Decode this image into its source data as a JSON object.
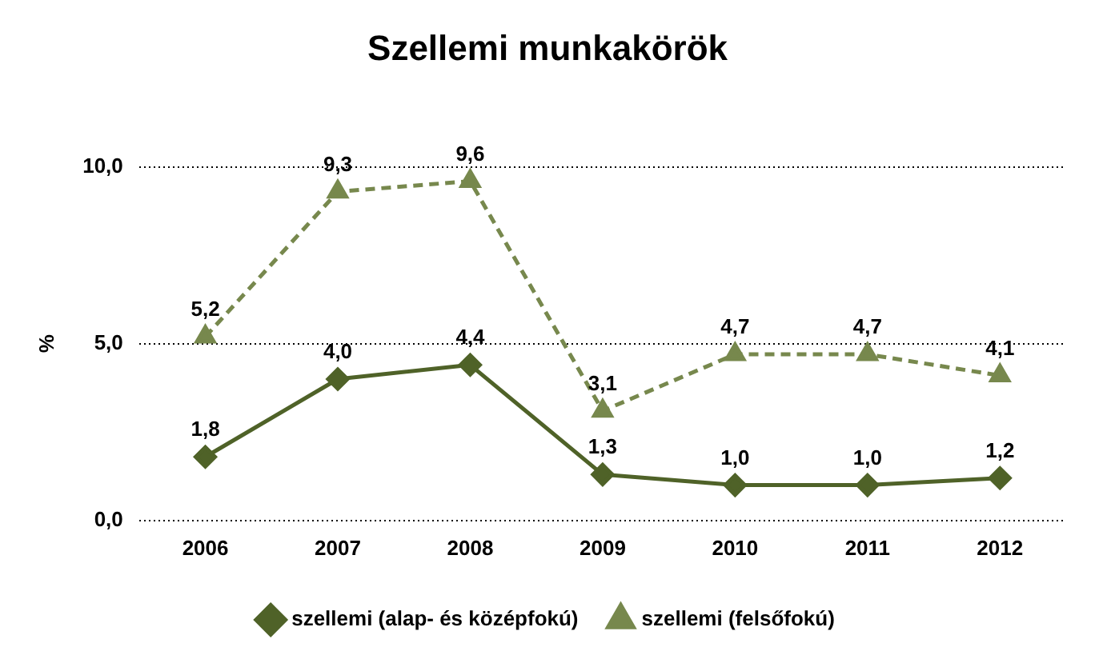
{
  "chart_data": {
    "type": "line",
    "title": "Szellemi munkakörök",
    "ylabel": "%",
    "categories": [
      "2006",
      "2007",
      "2008",
      "2009",
      "2010",
      "2011",
      "2012"
    ],
    "series": [
      {
        "name": "szellemi (alap- és középfokú)",
        "color": "#4f6228",
        "values": [
          1.8,
          4.0,
          4.4,
          1.3,
          1.0,
          1.0,
          1.2
        ],
        "value_labels": [
          "1,8",
          "4,0",
          "4,4",
          "1,3",
          "1,0",
          "1,0",
          "1,2"
        ],
        "marker": "diamond",
        "line_style": "solid"
      },
      {
        "name": "szellemi (felsőfokú)",
        "color": "#77884d",
        "values": [
          5.2,
          9.3,
          9.6,
          3.1,
          4.7,
          4.7,
          4.1
        ],
        "value_labels": [
          "5,2",
          "9,3",
          "9,6",
          "3,1",
          "4,7",
          "4,7",
          "4,1"
        ],
        "marker": "triangle",
        "line_style": "dashed"
      }
    ],
    "ylim": [
      0,
      10
    ],
    "yticks": [
      {
        "value": 0,
        "label": "0,0"
      },
      {
        "value": 5,
        "label": "5,0"
      },
      {
        "value": 10,
        "label": "10,0"
      }
    ],
    "grid": "y",
    "legend": "bottom"
  }
}
